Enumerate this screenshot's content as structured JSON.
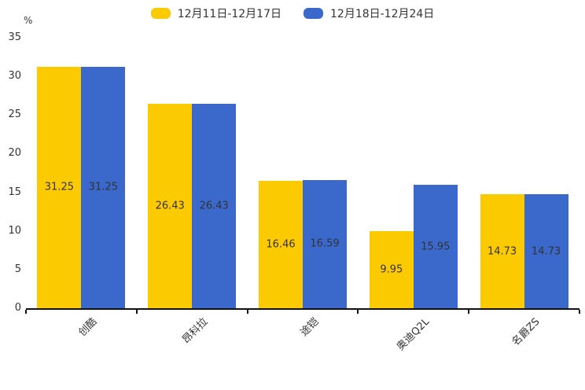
{
  "chart_data": {
    "type": "bar",
    "title": "",
    "categories": [
      "创酷",
      "昂科拉",
      "途铠",
      "奥迪Q2L",
      "名爵ZS"
    ],
    "series": [
      {
        "name": "12月11日-12月17日",
        "color": "#FCCA00",
        "values": [
          31.25,
          26.43,
          16.46,
          9.95,
          14.73
        ]
      },
      {
        "name": "12月18日-12月24日",
        "color": "#3A68CB",
        "values": [
          31.25,
          26.43,
          16.59,
          15.95,
          14.73
        ]
      }
    ],
    "xlabel": "",
    "ylabel": "%",
    "ylim": [
      0,
      35
    ],
    "yticks": [
      0,
      5,
      10,
      15,
      20,
      25,
      30,
      35
    ],
    "grid": false,
    "legend_position": "top",
    "value_labels": "inside-center",
    "value_label_color": "#333333",
    "axis_color": "#111111"
  }
}
